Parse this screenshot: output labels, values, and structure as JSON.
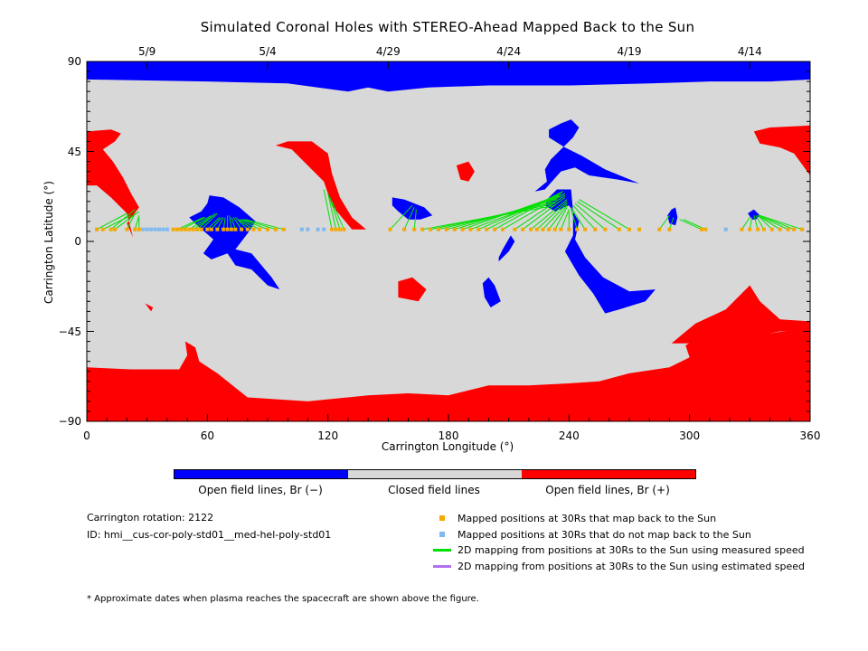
{
  "title": "Simulated Coronal Holes with STEREO-Ahead Mapped Back to the Sun",
  "colors": {
    "open_negative": "#0000ff",
    "closed": "#d8d8d8",
    "open_positive": "#ff0000",
    "mapped_back": "#f5a800",
    "not_mapped_back": "#7fb8ee",
    "measured_speed": "#00e000",
    "estimated_speed": "#b070f0"
  },
  "colorbar": {
    "open_negative_label": "Open field lines, Br (−)",
    "closed_label": "Closed field lines",
    "open_positive_label": "Open field lines, Br (+)"
  },
  "info": {
    "rotation": "Carrington rotation: 2122",
    "id": "ID: hmi__cus-cor-poly-std01__med-hel-poly-std01"
  },
  "legend": {
    "mapped_back": "Mapped positions at 30Rs that map back to the Sun",
    "not_mapped_back": "Mapped positions at 30Rs that do not map back to the Sun",
    "measured_speed": "2D mapping from positions at 30Rs to the Sun using measured speed",
    "estimated_speed": "2D mapping from positions at 30Rs to the Sun using estimated speed"
  },
  "footnote": "* Approximate dates when plasma reaches the spacecraft are shown above the figure.",
  "chart_data": {
    "type": "heatmap",
    "title": "Simulated Coronal Holes with STEREO-Ahead Mapped Back to the Sun",
    "xlabel": "Carrington Longitude (°)",
    "ylabel": "Carrington Latitude (°)",
    "xlim": [
      0,
      360
    ],
    "ylim": [
      -90,
      90
    ],
    "x_ticks": [
      "0",
      "60",
      "120",
      "180",
      "240",
      "300",
      "360"
    ],
    "y_ticks": [
      "90",
      "45",
      "0",
      "−45",
      "−90"
    ],
    "date_ticks": [
      {
        "label": "5/9",
        "lon": 30
      },
      {
        "label": "5/4",
        "lon": 90
      },
      {
        "label": "4/29",
        "lon": 150
      },
      {
        "label": "4/24",
        "lon": 210
      },
      {
        "label": "4/19",
        "lon": 270
      },
      {
        "label": "4/14",
        "lon": 330
      }
    ],
    "categories": [
      "Open field lines, Br (−)",
      "Closed field lines",
      "Open field lines, Br (+)"
    ],
    "spacecraft_lat": 6,
    "mapped_back_lons": [
      5,
      8,
      12,
      14,
      20,
      24,
      26,
      43,
      45,
      47,
      49,
      51,
      53,
      55,
      57,
      60,
      62,
      65,
      68,
      70,
      72,
      74,
      77,
      80,
      83,
      86,
      90,
      94,
      98,
      122,
      124,
      126,
      128,
      151,
      158,
      163,
      167,
      171,
      175,
      179,
      183,
      187,
      191,
      195,
      199,
      203,
      207,
      213,
      217,
      221,
      224,
      227,
      230,
      233,
      236,
      240,
      244,
      248,
      253,
      258,
      265,
      270,
      275,
      285,
      290,
      306,
      308,
      326,
      330,
      334,
      337,
      341,
      345,
      349,
      352,
      356
    ],
    "not_mapped_back_lons": [
      28,
      30,
      32,
      34,
      36,
      38,
      40,
      107,
      110,
      115,
      118,
      318
    ],
    "measured_speed_lines": [
      [
        5,
        20,
        14
      ],
      [
        8,
        22,
        13
      ],
      [
        12,
        24,
        16
      ],
      [
        14,
        26,
        15
      ],
      [
        20,
        24,
        14
      ],
      [
        24,
        26,
        13
      ],
      [
        26,
        26,
        12
      ],
      [
        45,
        58,
        12
      ],
      [
        47,
        59,
        12
      ],
      [
        51,
        62,
        13
      ],
      [
        53,
        63,
        13
      ],
      [
        55,
        64,
        14
      ],
      [
        57,
        65,
        14
      ],
      [
        60,
        66,
        12
      ],
      [
        62,
        67,
        12
      ],
      [
        65,
        68,
        12
      ],
      [
        68,
        69,
        12
      ],
      [
        70,
        70,
        13
      ],
      [
        72,
        71,
        13
      ],
      [
        74,
        72,
        12
      ],
      [
        77,
        73,
        12
      ],
      [
        80,
        74,
        12
      ],
      [
        83,
        75,
        11
      ],
      [
        86,
        76,
        11
      ],
      [
        90,
        77,
        11
      ],
      [
        94,
        78,
        11
      ],
      [
        98,
        79,
        11
      ],
      [
        122,
        118,
        26
      ],
      [
        124,
        120,
        24
      ],
      [
        126,
        121,
        22
      ],
      [
        128,
        122,
        20
      ],
      [
        151,
        162,
        18
      ],
      [
        158,
        163,
        17
      ],
      [
        163,
        164,
        16
      ],
      [
        167,
        233,
        18
      ],
      [
        171,
        233,
        19
      ],
      [
        175,
        234,
        20
      ],
      [
        179,
        234,
        21
      ],
      [
        183,
        235,
        22
      ],
      [
        187,
        235,
        23
      ],
      [
        191,
        236,
        23
      ],
      [
        195,
        236,
        24
      ],
      [
        199,
        237,
        25
      ],
      [
        203,
        237,
        25
      ],
      [
        207,
        238,
        24
      ],
      [
        213,
        238,
        23
      ],
      [
        217,
        238,
        22
      ],
      [
        221,
        239,
        21
      ],
      [
        224,
        239,
        20
      ],
      [
        227,
        239,
        19
      ],
      [
        230,
        239,
        18
      ],
      [
        233,
        239,
        17
      ],
      [
        236,
        240,
        16
      ],
      [
        240,
        240,
        15
      ],
      [
        244,
        241,
        16
      ],
      [
        248,
        241,
        17
      ],
      [
        253,
        242,
        18
      ],
      [
        258,
        243,
        19
      ],
      [
        265,
        244,
        20
      ],
      [
        270,
        245,
        21
      ],
      [
        285,
        290,
        13
      ],
      [
        290,
        292,
        12
      ],
      [
        306,
        295,
        11
      ],
      [
        308,
        297,
        11
      ],
      [
        326,
        330,
        12
      ],
      [
        330,
        331,
        12
      ],
      [
        334,
        332,
        13
      ],
      [
        337,
        333,
        13
      ],
      [
        341,
        334,
        13
      ],
      [
        345,
        334,
        13
      ],
      [
        349,
        334,
        13
      ],
      [
        352,
        335,
        13
      ],
      [
        356,
        335,
        13
      ]
    ],
    "estimated_speed_lines": []
  }
}
